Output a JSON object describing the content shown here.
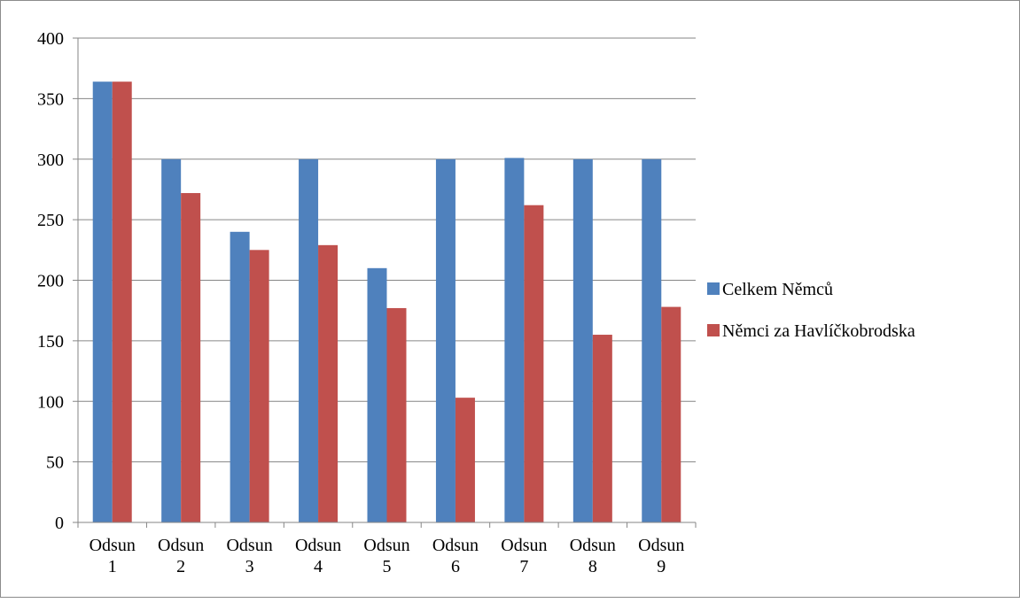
{
  "chart_data": {
    "type": "bar",
    "title": "",
    "xlabel": "",
    "ylabel": "",
    "ylim": [
      0,
      400
    ],
    "yticks": [
      0,
      50,
      100,
      150,
      200,
      250,
      300,
      350,
      400
    ],
    "categories": [
      [
        "Odsun",
        "1"
      ],
      [
        "Odsun",
        "2"
      ],
      [
        "Odsun",
        "3"
      ],
      [
        "Odsun",
        "4"
      ],
      [
        "Odsun",
        "5"
      ],
      [
        "Odsun",
        "6"
      ],
      [
        "Odsun",
        "7"
      ],
      [
        "Odsun",
        "8"
      ],
      [
        "Odsun",
        "9"
      ]
    ],
    "series": [
      {
        "name": "Celkem Němců",
        "color": "#4f81bd",
        "values": [
          364,
          300,
          240,
          300,
          210,
          300,
          301,
          300,
          300
        ]
      },
      {
        "name": "Němci za Havlíčkobrodska",
        "color": "#c0504d",
        "values": [
          364,
          272,
          225,
          229,
          177,
          103,
          262,
          155,
          178
        ]
      }
    ],
    "grid": true,
    "legend_position": "right"
  }
}
